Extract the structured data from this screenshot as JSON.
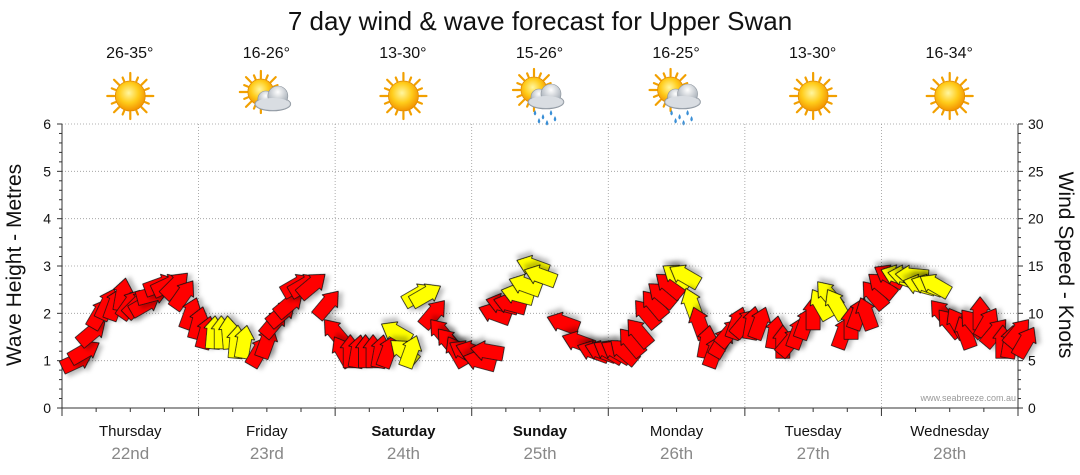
{
  "chart_data": {
    "type": "line",
    "title": "7 day wind & wave forecast for Upper Swan",
    "ylabel_left": "Wave Height - Metres",
    "ylabel_right": "Wind Speed - Knots",
    "ylim_left": [
      0,
      6
    ],
    "ylim_right": [
      0,
      30
    ],
    "yticks_left": [
      "0",
      "1",
      "2",
      "3",
      "4",
      "5",
      "6"
    ],
    "yticks_right": [
      "0",
      "5",
      "10",
      "15",
      "20",
      "25",
      "30"
    ],
    "grid": true,
    "credit": "www.seabreeze.com.au",
    "days": [
      {
        "name": "Thursday",
        "date": "22nd",
        "temp": "26-35°",
        "icon": "sun-icon",
        "bold": false
      },
      {
        "name": "Friday",
        "date": "23rd",
        "temp": "16-26°",
        "icon": "sun-cloud-icon",
        "bold": false
      },
      {
        "name": "Saturday",
        "date": "24th",
        "temp": "13-30°",
        "icon": "sun-icon",
        "bold": true
      },
      {
        "name": "Sunday",
        "date": "25th",
        "temp": "15-26°",
        "icon": "sun-cloud-rain-icon",
        "bold": true
      },
      {
        "name": "Monday",
        "date": "26th",
        "temp": "16-25°",
        "icon": "sun-cloud-rain-icon",
        "bold": false
      },
      {
        "name": "Tuesday",
        "date": "27th",
        "temp": "13-30°",
        "icon": "sun-icon",
        "bold": false
      },
      {
        "name": "Wednesday",
        "date": "28th",
        "temp": "16-34°",
        "icon": "sun-icon",
        "bold": false
      }
    ],
    "colors": {
      "strong": "#ff0000",
      "light": "#ffff00",
      "grid": "#999999",
      "axis": "#333333"
    },
    "series": [
      {
        "name": "Wind",
        "unit": "knots",
        "points": [
          {
            "t": 0.0,
            "speed": 5,
            "dir": 65
          },
          {
            "t": 0.25,
            "speed": 6,
            "dir": 60
          },
          {
            "t": 0.5,
            "speed": 8,
            "dir": 50
          },
          {
            "t": 0.75,
            "speed": 10,
            "dir": 30
          },
          {
            "t": 1.0,
            "speed": 11,
            "dir": 25
          },
          {
            "t": 1.25,
            "speed": 11,
            "dir": 20
          },
          {
            "t": 1.5,
            "speed": 12,
            "dir": 10
          },
          {
            "t": 1.75,
            "speed": 11,
            "dir": 35
          },
          {
            "t": 2.0,
            "speed": 11,
            "dir": 45
          },
          {
            "t": 2.25,
            "speed": 11,
            "dir": 60
          },
          {
            "t": 2.5,
            "speed": 12,
            "dir": 75
          },
          {
            "t": 2.75,
            "speed": 13,
            "dir": 70
          },
          {
            "t": 3.0,
            "speed": 13,
            "dir": 65
          },
          {
            "t": 3.25,
            "speed": 13,
            "dir": 45
          },
          {
            "t": 3.5,
            "speed": 12,
            "dir": 35
          },
          {
            "t": 3.75,
            "speed": 10,
            "dir": 20
          },
          {
            "t": 4.0,
            "speed": 9,
            "dir": 15
          },
          {
            "t": 4.25,
            "speed": 8,
            "dir": 15
          },
          {
            "t": 4.5,
            "speed": 8,
            "dir": 5
          },
          {
            "t": 4.75,
            "speed": 8,
            "dir": 0
          },
          {
            "t": 5.0,
            "speed": 8,
            "dir": 355
          },
          {
            "t": 5.25,
            "speed": 7,
            "dir": 5
          },
          {
            "t": 5.5,
            "speed": 7,
            "dir": 10
          },
          {
            "t": 6.0,
            "speed": 6,
            "dir": 30
          },
          {
            "t": 6.25,
            "speed": 7,
            "dir": 20
          },
          {
            "t": 6.5,
            "speed": 9,
            "dir": 40
          },
          {
            "t": 6.75,
            "speed": 10,
            "dir": 50
          },
          {
            "t": 7.0,
            "speed": 11,
            "dir": 50
          },
          {
            "t": 7.25,
            "speed": 13,
            "dir": 60
          },
          {
            "t": 7.5,
            "speed": 13,
            "dir": 60
          },
          {
            "t": 7.75,
            "speed": 13,
            "dir": 50
          },
          {
            "t": 8.25,
            "speed": 11,
            "dir": 40
          },
          {
            "t": 8.5,
            "speed": 8,
            "dir": 320
          },
          {
            "t": 8.75,
            "speed": 6,
            "dir": 330
          },
          {
            "t": 9.0,
            "speed": 6,
            "dir": 0
          },
          {
            "t": 9.25,
            "speed": 6,
            "dir": 10
          },
          {
            "t": 9.5,
            "speed": 6,
            "dir": 0
          },
          {
            "t": 9.75,
            "speed": 6,
            "dir": 0
          },
          {
            "t": 10.0,
            "speed": 6,
            "dir": 10
          },
          {
            "t": 10.25,
            "speed": 6,
            "dir": 20
          },
          {
            "t": 10.5,
            "speed": 8,
            "dir": 300
          },
          {
            "t": 10.75,
            "speed": 6,
            "dir": 310
          },
          {
            "t": 11.0,
            "speed": 6,
            "dir": 20
          },
          {
            "t": 11.25,
            "speed": 12,
            "dir": 60
          },
          {
            "t": 11.5,
            "speed": 12,
            "dir": 60
          },
          {
            "t": 11.75,
            "speed": 10,
            "dir": 40
          },
          {
            "t": 12.0,
            "speed": 8,
            "dir": 320
          },
          {
            "t": 12.25,
            "speed": 7,
            "dir": 320
          },
          {
            "t": 12.5,
            "speed": 6,
            "dir": 330
          },
          {
            "t": 12.75,
            "speed": 6,
            "dir": 300
          },
          {
            "t": 13.0,
            "speed": 6,
            "dir": 290
          },
          {
            "t": 13.25,
            "speed": 5,
            "dir": 285
          },
          {
            "t": 13.5,
            "speed": 6,
            "dir": 280
          },
          {
            "t": 13.75,
            "speed": 10,
            "dir": 290
          },
          {
            "t": 14.0,
            "speed": 11,
            "dir": 285
          },
          {
            "t": 14.25,
            "speed": 11,
            "dir": 285
          },
          {
            "t": 14.5,
            "speed": 12,
            "dir": 285
          },
          {
            "t": 14.75,
            "speed": 13,
            "dir": 290
          },
          {
            "t": 15.0,
            "speed": 15,
            "dir": 290
          },
          {
            "t": 15.25,
            "speed": 14,
            "dir": 290
          },
          {
            "t": 16.0,
            "speed": 9,
            "dir": 290
          },
          {
            "t": 16.5,
            "speed": 7,
            "dir": 290
          },
          {
            "t": 17.0,
            "speed": 6,
            "dir": 290
          },
          {
            "t": 17.25,
            "speed": 6,
            "dir": 290
          },
          {
            "t": 17.5,
            "speed": 6,
            "dir": 300
          },
          {
            "t": 17.75,
            "speed": 6,
            "dir": 300
          },
          {
            "t": 18.0,
            "speed": 6,
            "dir": 310
          },
          {
            "t": 18.25,
            "speed": 7,
            "dir": 320
          },
          {
            "t": 18.5,
            "speed": 8,
            "dir": 320
          },
          {
            "t": 18.75,
            "speed": 10,
            "dir": 320
          },
          {
            "t": 19.0,
            "speed": 11,
            "dir": 320
          },
          {
            "t": 19.25,
            "speed": 12,
            "dir": 310
          },
          {
            "t": 19.5,
            "speed": 13,
            "dir": 310
          },
          {
            "t": 19.75,
            "speed": 14,
            "dir": 305
          },
          {
            "t": 20.0,
            "speed": 14,
            "dir": 300
          },
          {
            "t": 20.25,
            "speed": 11,
            "dir": 340
          },
          {
            "t": 20.5,
            "speed": 9,
            "dir": 340
          },
          {
            "t": 20.75,
            "speed": 7,
            "dir": 10
          },
          {
            "t": 21.0,
            "speed": 6,
            "dir": 20
          },
          {
            "t": 21.25,
            "speed": 7,
            "dir": 30
          },
          {
            "t": 21.5,
            "speed": 8,
            "dir": 40
          },
          {
            "t": 21.75,
            "speed": 9,
            "dir": 20
          },
          {
            "t": 22.0,
            "speed": 9,
            "dir": 40
          },
          {
            "t": 22.25,
            "speed": 9,
            "dir": 10
          },
          {
            "t": 22.5,
            "speed": 9,
            "dir": 20
          },
          {
            "t": 23.0,
            "speed": 8,
            "dir": 10
          },
          {
            "t": 23.25,
            "speed": 7,
            "dir": 0
          },
          {
            "t": 23.5,
            "speed": 7,
            "dir": 40
          },
          {
            "t": 23.75,
            "speed": 8,
            "dir": 20
          },
          {
            "t": 24.0,
            "speed": 9,
            "dir": 20
          },
          {
            "t": 24.25,
            "speed": 10,
            "dir": 0
          },
          {
            "t": 24.5,
            "speed": 11,
            "dir": 330
          },
          {
            "t": 24.75,
            "speed": 12,
            "dir": 320
          },
          {
            "t": 25.0,
            "speed": 11,
            "dir": 330
          },
          {
            "t": 25.25,
            "speed": 8,
            "dir": 20
          },
          {
            "t": 25.5,
            "speed": 9,
            "dir": 0
          },
          {
            "t": 25.75,
            "speed": 10,
            "dir": 20
          },
          {
            "t": 26.0,
            "speed": 10,
            "dir": 340
          },
          {
            "t": 26.25,
            "speed": 12,
            "dir": 320
          },
          {
            "t": 26.5,
            "speed": 13,
            "dir": 310
          },
          {
            "t": 26.75,
            "speed": 14,
            "dir": 300
          },
          {
            "t": 27.0,
            "speed": 14,
            "dir": 290
          },
          {
            "t": 27.25,
            "speed": 14,
            "dir": 280
          },
          {
            "t": 27.5,
            "speed": 14,
            "dir": 275
          },
          {
            "t": 27.75,
            "speed": 13,
            "dir": 285
          },
          {
            "t": 28.0,
            "speed": 13,
            "dir": 290
          },
          {
            "t": 28.25,
            "speed": 13,
            "dir": 300
          },
          {
            "t": 28.5,
            "speed": 10,
            "dir": 320
          },
          {
            "t": 28.75,
            "speed": 9,
            "dir": 320
          },
          {
            "t": 29.0,
            "speed": 9,
            "dir": 330
          },
          {
            "t": 29.25,
            "speed": 8,
            "dir": 340
          },
          {
            "t": 29.5,
            "speed": 9,
            "dir": 320
          },
          {
            "t": 29.75,
            "speed": 10,
            "dir": 0
          },
          {
            "t": 30.0,
            "speed": 9,
            "dir": 30
          },
          {
            "t": 30.25,
            "speed": 8,
            "dir": 40
          },
          {
            "t": 30.5,
            "speed": 7,
            "dir": 0
          },
          {
            "t": 30.75,
            "speed": 7,
            "dir": 10
          },
          {
            "t": 31.0,
            "speed": 8,
            "dir": 40
          },
          {
            "t": 31.25,
            "speed": 7,
            "dir": 30
          }
        ]
      }
    ]
  }
}
